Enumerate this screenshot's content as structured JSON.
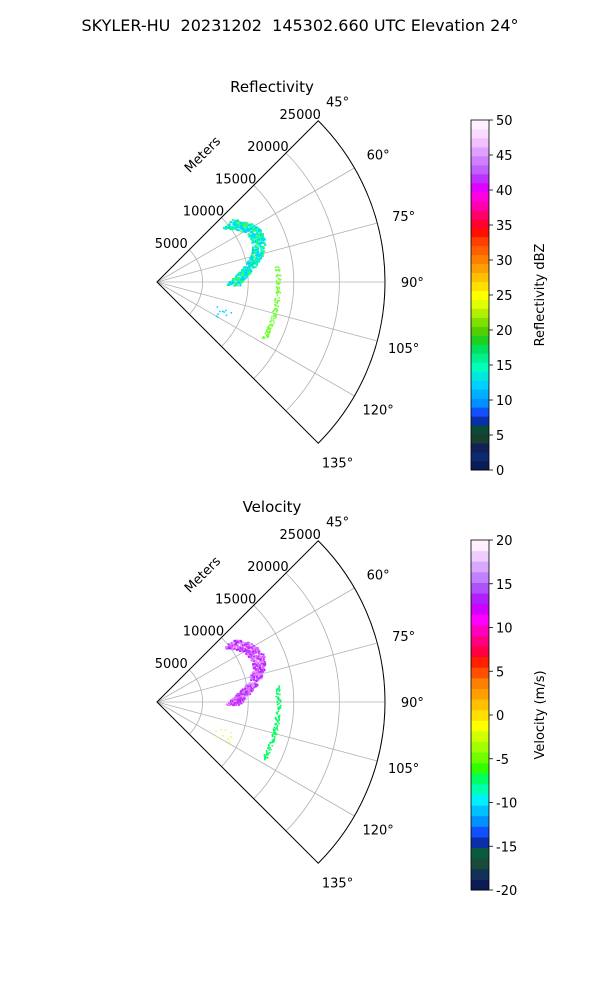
{
  "title": "SKYLER-HU  20231202  145302.660 UTC Elevation 24°",
  "chart_data": [
    {
      "type": "polar-sector",
      "title": "Reflectivity",
      "range_label": "Meters",
      "range_ticks": [
        5000,
        10000,
        15000,
        20000,
        25000
      ],
      "range_max": 25000,
      "azimuth_range": [
        45,
        135
      ],
      "azimuth_ticks": [
        "45°",
        "60°",
        "75°",
        "90°",
        "105°",
        "120°",
        "135°"
      ],
      "colorbar": {
        "label": "Reflectivity dBZ",
        "min": 0,
        "max": 50,
        "ticks": [
          0,
          5,
          10,
          15,
          20,
          25,
          30,
          35,
          40,
          45,
          50
        ],
        "colors": [
          "#0a1b55",
          "#0d2a6e",
          "#12205a",
          "#1a3f2e",
          "#0a4a3a",
          "#0b2fa8",
          "#1050ff",
          "#0090ff",
          "#00b0ff",
          "#00d0ff",
          "#00e8e0",
          "#00ffb8",
          "#00f090",
          "#00e060",
          "#20d020",
          "#50d000",
          "#80e000",
          "#b0f000",
          "#e0ff00",
          "#ffff00",
          "#ffe000",
          "#ffc000",
          "#ffa000",
          "#ff8000",
          "#ff6000",
          "#ff4000",
          "#ff1000",
          "#ff0030",
          "#ff0070",
          "#ff00b0",
          "#ff00e0",
          "#e000ff",
          "#c030ff",
          "#c060ff",
          "#d080ff",
          "#e0a0ff",
          "#f0c0ff",
          "#f8dcff",
          "#fff0ff"
        ]
      },
      "echo_colors": [
        "#00e0ff",
        "#00ffb0",
        "#30ff60",
        "#00d0ff",
        "#70ff30"
      ]
    },
    {
      "type": "polar-sector",
      "title": "Velocity",
      "range_label": "Meters",
      "range_ticks": [
        5000,
        10000,
        15000,
        20000,
        25000
      ],
      "range_max": 25000,
      "azimuth_range": [
        45,
        135
      ],
      "azimuth_ticks": [
        "45°",
        "60°",
        "75°",
        "90°",
        "105°",
        "120°",
        "135°"
      ],
      "colorbar": {
        "label": "Velocity (m/s)",
        "min": -20,
        "max": 20,
        "ticks": [
          -20,
          -15,
          -10,
          -5,
          0,
          5,
          10,
          15,
          20
        ],
        "colors": [
          "#0a1b55",
          "#12305a",
          "#1a4a3a",
          "#0a5a40",
          "#0b2fa8",
          "#1050ff",
          "#0090ff",
          "#00c0ff",
          "#00f0ff",
          "#00ffb0",
          "#00ff60",
          "#30ff00",
          "#70ff00",
          "#a0ff00",
          "#d0ff00",
          "#ffff00",
          "#ffe000",
          "#ffc000",
          "#ffa000",
          "#ff8000",
          "#ff5000",
          "#ff2000",
          "#ff0040",
          "#ff0080",
          "#ff00c0",
          "#ff00ff",
          "#d000ff",
          "#b020ff",
          "#b050ff",
          "#c080ff",
          "#d8a8ff",
          "#f0ccff",
          "#fff0ff"
        ]
      },
      "echo_colors": [
        "#cc33ff",
        "#e060ff",
        "#b020ff",
        "#d890ff",
        "#00ff60"
      ]
    }
  ]
}
